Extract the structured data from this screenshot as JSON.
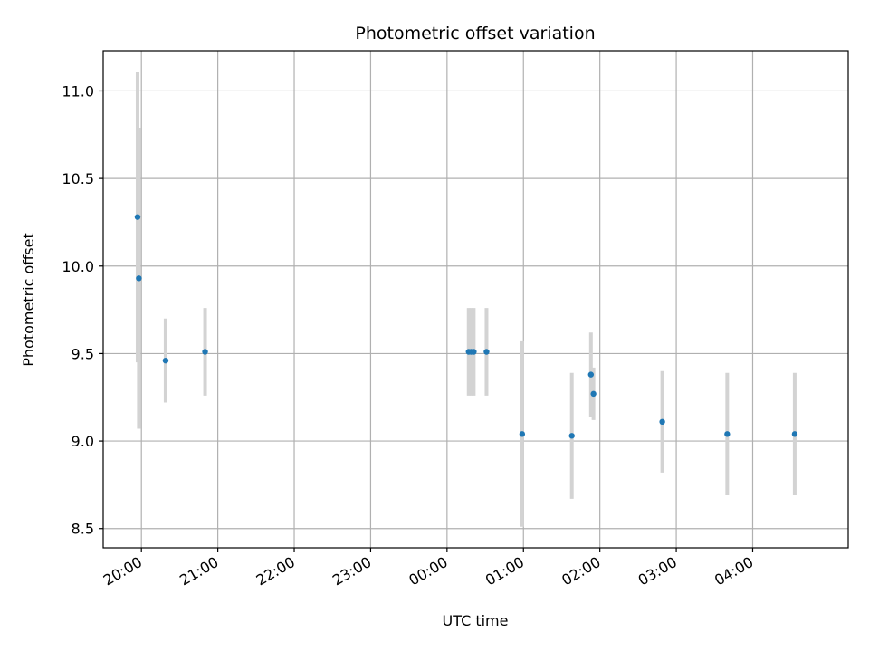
{
  "chart_data": {
    "type": "scatter",
    "title": "Photometric offset variation",
    "xlabel": "UTC time",
    "ylabel": "Photometric offset",
    "x_format": "HH:MM",
    "xlim": [
      "19:30",
      "05:15"
    ],
    "ylim": [
      8.39,
      11.23
    ],
    "yticks": [
      "8.5",
      "9.0",
      "9.5",
      "10.0",
      "10.5",
      "11.0"
    ],
    "xticks": [
      "20:00",
      "21:00",
      "22:00",
      "23:00",
      "00:00",
      "01:00",
      "02:00",
      "03:00",
      "04:00"
    ],
    "grid": true,
    "colors": {
      "point": "#1f77b4",
      "errorbar": "#d3d3d3",
      "grid": "#b0b0b0"
    },
    "points": [
      {
        "x": "19:57",
        "y": 10.28,
        "err": 0.83
      },
      {
        "x": "19:58",
        "y": 9.93,
        "err": 0.86
      },
      {
        "x": "20:19",
        "y": 9.46,
        "err": 0.24
      },
      {
        "x": "20:50",
        "y": 9.51,
        "err": 0.25
      },
      {
        "x": "00:17",
        "y": 9.51,
        "err": 0.25
      },
      {
        "x": "00:19",
        "y": 9.51,
        "err": 0.25
      },
      {
        "x": "00:21",
        "y": 9.51,
        "err": 0.25
      },
      {
        "x": "00:31",
        "y": 9.51,
        "err": 0.25
      },
      {
        "x": "00:59",
        "y": 9.04,
        "err": 0.53
      },
      {
        "x": "01:38",
        "y": 9.03,
        "err": 0.36
      },
      {
        "x": "01:53",
        "y": 9.38,
        "err": 0.24
      },
      {
        "x": "01:55",
        "y": 9.27,
        "err": 0.15
      },
      {
        "x": "02:49",
        "y": 9.11,
        "err": 0.29
      },
      {
        "x": "03:40",
        "y": 9.04,
        "err": 0.35
      },
      {
        "x": "04:33",
        "y": 9.04,
        "err": 0.35
      }
    ]
  }
}
